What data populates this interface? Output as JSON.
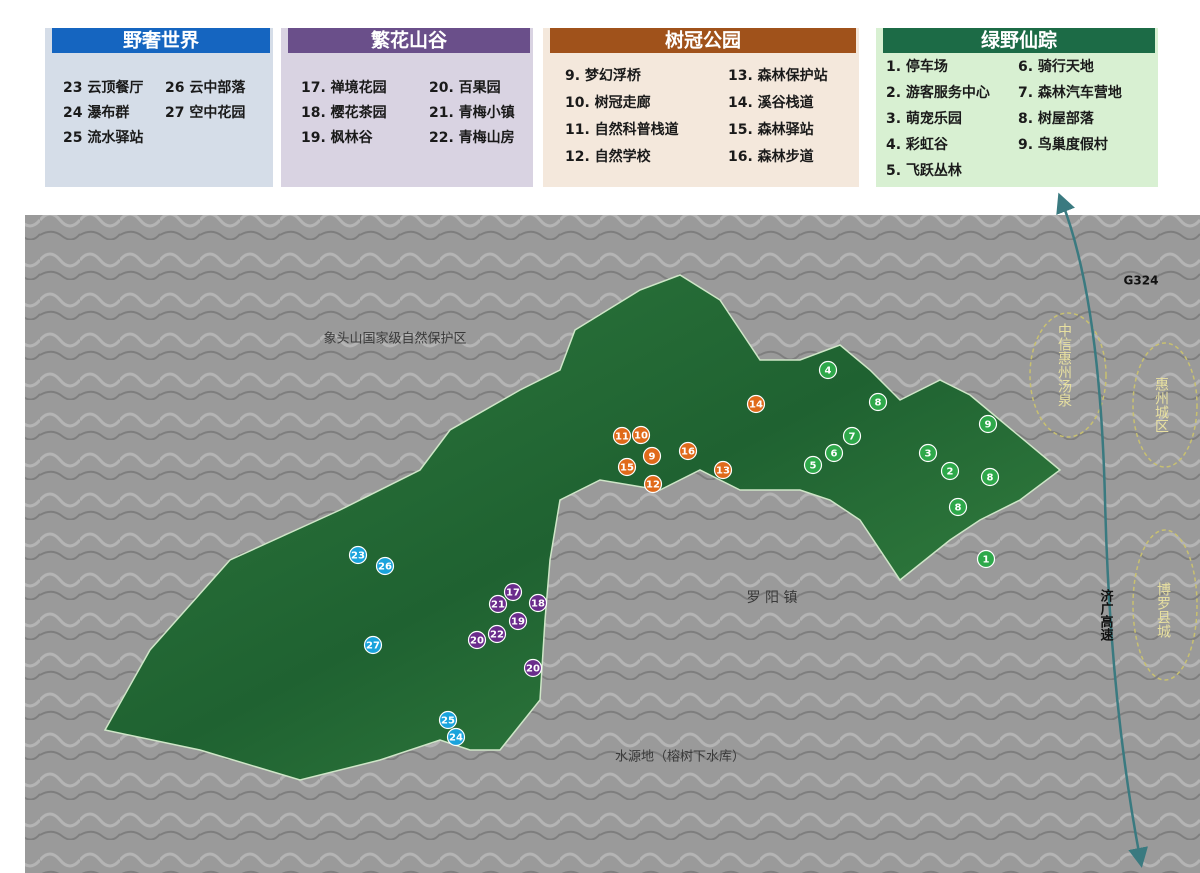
{
  "legend": [
    {
      "title": "野奢世界",
      "color": "#1aa3dc",
      "columns": [
        [
          "23 云顶餐厅",
          "24 瀑布群",
          "25 流水驿站"
        ],
        [
          "26 云中部落",
          "27 空中花园"
        ]
      ],
      "markers": [
        "23",
        "26",
        "27",
        "25",
        "24"
      ]
    },
    {
      "title": "繁花山谷",
      "color": "#6a2c8c",
      "columns": [
        [
          "17. 禅境花园",
          "18. 樱花茶园",
          "19. 枫林谷"
        ],
        [
          "20. 百果园",
          "21. 青梅小镇",
          "22. 青梅山房"
        ]
      ],
      "markers": [
        "17",
        "18",
        "21",
        "19",
        "22",
        "20",
        "20"
      ]
    },
    {
      "title": "树冠公园",
      "color": "#e06a1a",
      "columns": [
        [
          "9. 梦幻浮桥",
          "10. 树冠走廊",
          "11. 自然科普栈道",
          "12. 自然学校"
        ],
        [
          "13. 森林保护站",
          "14. 溪谷栈道",
          "15. 森林驿站",
          "16. 森林步道"
        ]
      ],
      "markers": [
        "11",
        "10",
        "9",
        "15",
        "12",
        "16",
        "13",
        "14"
      ]
    },
    {
      "title": "绿野仙踪",
      "color": "#2ea84a",
      "columns": [
        [
          "1. 停车场",
          "2. 游客服务中心",
          "3. 萌宠乐园",
          "4. 彩虹谷",
          "5. 飞跃丛林"
        ],
        [
          "6. 骑行天地",
          "7. 森林汽车营地",
          "8. 树屋部落",
          "9. 鸟巢度假村"
        ]
      ],
      "markers": [
        "4",
        "8",
        "9",
        "7",
        "3",
        "6",
        "5",
        "2",
        "8",
        "8",
        "1"
      ]
    }
  ],
  "map": {
    "labels": [
      "象头山国家级自然保护区",
      "罗 阳 镇",
      "水源地（榕树下水库）",
      "G324",
      "济广高速",
      "中信惠州汤泉",
      "惠州城区",
      "博罗县城"
    ]
  }
}
